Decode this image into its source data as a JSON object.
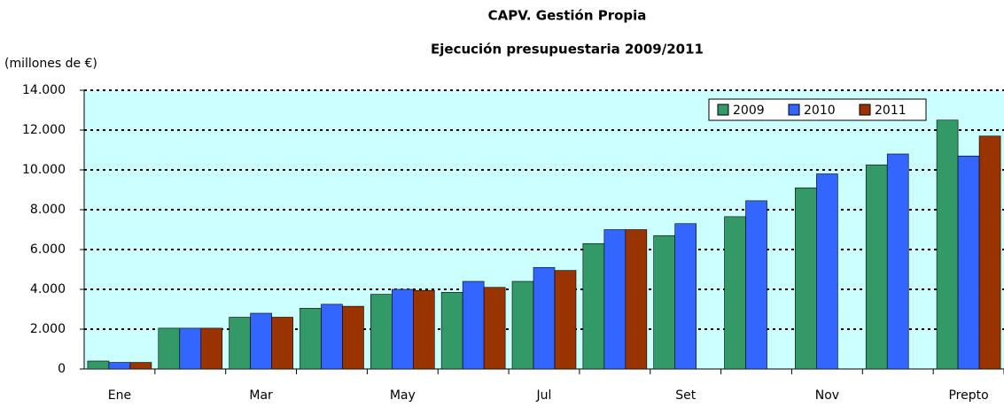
{
  "chart_data": {
    "type": "bar",
    "title": "CAPV. Gestión Propia",
    "subtitle": "Ejecución presupuestaria  2009/2011",
    "y_label": "(millones de €)",
    "categories": [
      "Ene",
      null,
      "Mar",
      null,
      "May",
      null,
      "Jul",
      null,
      "Set",
      null,
      "Nov",
      null,
      "Prepto"
    ],
    "series": [
      {
        "name": "2009",
        "color": "#339966",
        "values": [
          400,
          2050,
          2600,
          3050,
          3750,
          3850,
          4400,
          6300,
          6700,
          7650,
          9100,
          10250,
          12500
        ]
      },
      {
        "name": "2010",
        "color": "#3366ff",
        "values": [
          330,
          2050,
          2800,
          3250,
          4000,
          4400,
          5100,
          7000,
          7300,
          8450,
          9800,
          10800,
          10700
        ]
      },
      {
        "name": "2011",
        "color": "#993300",
        "values": [
          330,
          2050,
          2600,
          3150,
          3950,
          4100,
          4950,
          7000,
          null,
          null,
          null,
          null,
          11700
        ]
      }
    ],
    "ylim": [
      0,
      14000
    ],
    "yticks": [
      0,
      {
        "value": 2000,
        "label": "2.000"
      },
      {
        "value": 4000,
        "label": "4.000"
      },
      {
        "value": 6000,
        "label": "6.000"
      },
      {
        "value": 8000,
        "label": "8.000"
      },
      {
        "value": 10000,
        "label": "10.000"
      },
      {
        "value": 12000,
        "label": "12.000"
      },
      {
        "value": 14000,
        "label": "14.000"
      }
    ],
    "grid": true,
    "legend": "top-right"
  }
}
